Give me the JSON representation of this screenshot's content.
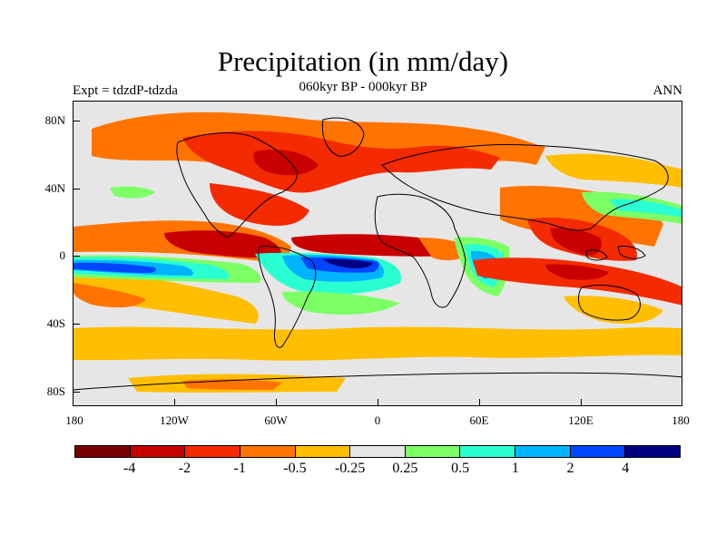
{
  "title": "Precipitation (in mm/day)",
  "subtitle": "060kyr BP - 000kyr BP",
  "left_label": "Expt = tdzdP-tdzda",
  "right_label": "ANN",
  "lat_ticks": [
    "80N",
    "40N",
    "0",
    "40S",
    "80S"
  ],
  "lon_ticks": [
    "180",
    "120W",
    "60W",
    "0",
    "60E",
    "120E",
    "180"
  ],
  "colorbar": {
    "colors": [
      "#7a0000",
      "#c80000",
      "#f42a00",
      "#ff7400",
      "#ffbe00",
      "#e6e6e6",
      "#7dff66",
      "#2affd2",
      "#00b4ff",
      "#0046ff",
      "#000080"
    ],
    "labels": [
      "-4",
      "-2",
      "-1",
      "-0.5",
      "-0.25",
      "0.25",
      "0.5",
      "1",
      "2",
      "4"
    ]
  }
}
